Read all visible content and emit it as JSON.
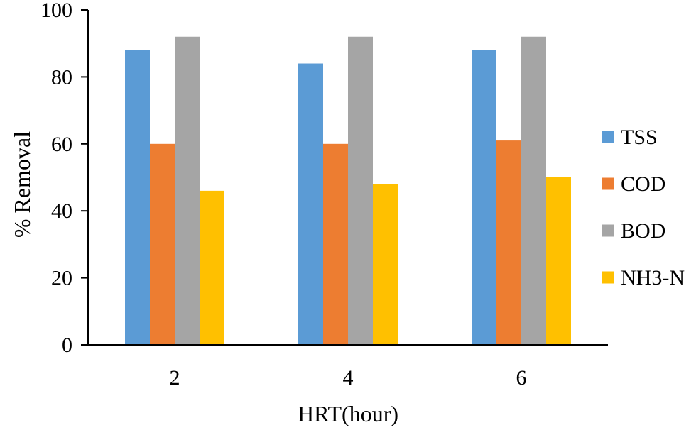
{
  "chart_data": {
    "type": "bar",
    "title": "",
    "xlabel": "HRT(hour)",
    "ylabel": "% Removal",
    "categories": [
      "2",
      "4",
      "6"
    ],
    "ylim": [
      0,
      100
    ],
    "yticks": [
      0,
      20,
      40,
      60,
      80,
      100
    ],
    "grid": false,
    "legend_position": "right",
    "series": [
      {
        "name": "TSS",
        "color": "#5B9BD5",
        "values": [
          88,
          84,
          88
        ]
      },
      {
        "name": "COD",
        "color": "#ED7D31",
        "values": [
          60,
          60,
          61
        ]
      },
      {
        "name": "BOD",
        "color": "#A5A5A5",
        "values": [
          92,
          92,
          92
        ]
      },
      {
        "name": "NH3-N",
        "color": "#FFC000",
        "values": [
          46,
          48,
          50
        ]
      }
    ]
  }
}
